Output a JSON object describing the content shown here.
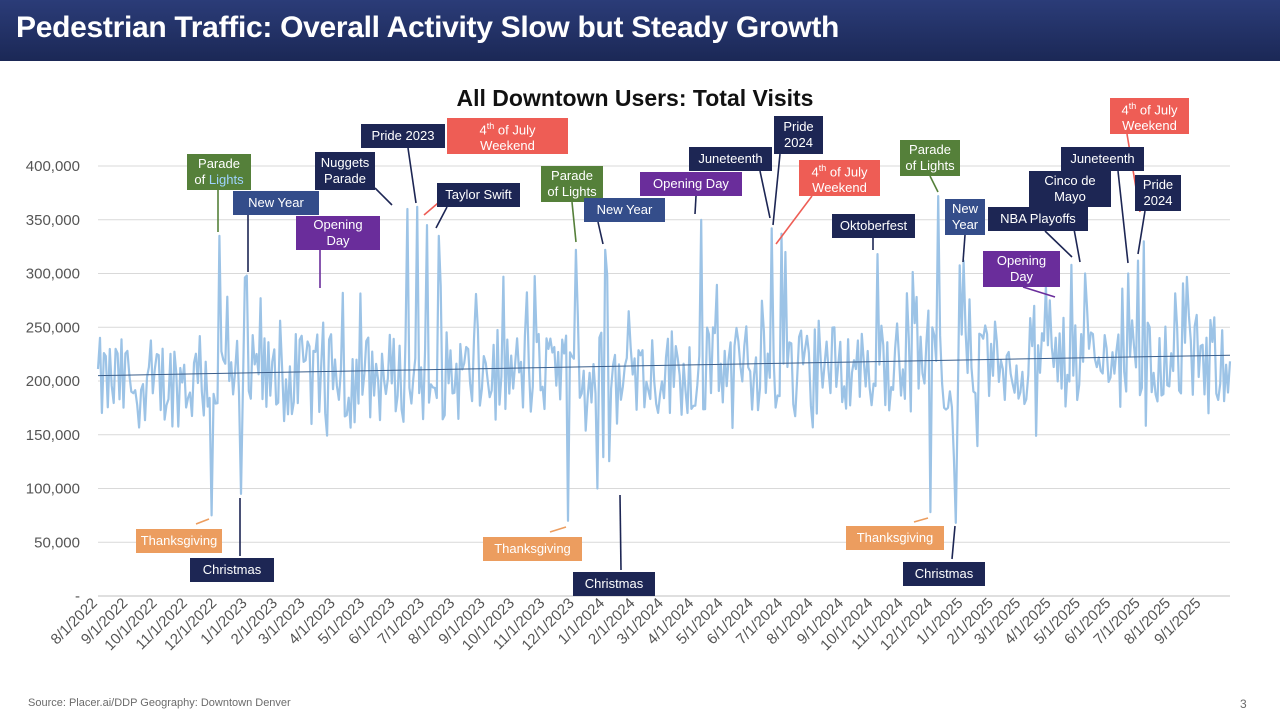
{
  "header": {
    "title": "Pedestrian Traffic: Overall Activity Slow but Steady Growth"
  },
  "footer": {
    "source": "Source: Placer.ai/DDP   Geography: Downtown Denver",
    "page": "3"
  },
  "colors": {
    "line": "#9cc3e6",
    "trend": "#3b5e8a",
    "navy": "#1d2654",
    "blue": "#344d8a",
    "green": "#55803a",
    "purple": "#6a2d9b",
    "red": "#ee5d55",
    "orange": "#ec9d5f"
  },
  "chart_data": {
    "type": "line",
    "title": "All Downtown Users: Total Visits",
    "xlabel": "",
    "ylabel": "",
    "ylim": [
      0,
      400000
    ],
    "y_ticks": [
      "-",
      "50,000",
      "100,000",
      "150,000",
      "200,000",
      "250,000",
      "300,000",
      "350,000",
      "400,000"
    ],
    "x_ticks": [
      "8/1/2022",
      "9/1/2022",
      "10/1/2022",
      "11/1/2022",
      "12/1/2022",
      "1/1/2023",
      "2/1/2023",
      "3/1/2023",
      "4/1/2023",
      "5/1/2023",
      "6/1/2023",
      "7/1/2023",
      "8/1/2023",
      "9/1/2023",
      "10/1/2023",
      "11/1/2023",
      "12/1/2023",
      "1/1/2024",
      "2/1/2024",
      "3/1/2024",
      "4/1/2024",
      "5/1/2024",
      "6/1/2024",
      "7/1/2024",
      "8/1/2024",
      "9/1/2024",
      "10/1/2024",
      "11/1/2024",
      "12/1/2024",
      "1/1/2025",
      "2/1/2025",
      "3/1/2025",
      "4/1/2025",
      "5/1/2025",
      "6/1/2025",
      "7/1/2025",
      "8/1/2025",
      "9/1/2025"
    ],
    "series": [
      {
        "name": "Total Visits",
        "start": "8/1/2022",
        "end": "9/30/2025",
        "baseline_start": 198000,
        "baseline_end": 220000,
        "spikes": [
          {
            "date": "11/25/2022",
            "value": 75000
          },
          {
            "date": "12/3/2022",
            "value": 335000
          },
          {
            "date": "12/25/2022",
            "value": 95000
          },
          {
            "date": "1/1/2023",
            "value": 298000
          },
          {
            "date": "4/8/2023",
            "value": 282000
          },
          {
            "date": "6/13/2023",
            "value": 360000
          },
          {
            "date": "6/24/2023",
            "value": 362000
          },
          {
            "date": "7/4/2023",
            "value": 345000
          },
          {
            "date": "7/15/2023",
            "value": 335000
          },
          {
            "date": "11/24/2023",
            "value": 70000
          },
          {
            "date": "12/2/2023",
            "value": 322000
          },
          {
            "date": "12/25/2023",
            "value": 100000
          },
          {
            "date": "1/1/2024",
            "value": 322000
          },
          {
            "date": "4/8/2024",
            "value": 350000
          },
          {
            "date": "6/19/2024",
            "value": 342000
          },
          {
            "date": "6/29/2024",
            "value": 337000
          },
          {
            "date": "7/4/2024",
            "value": 320000
          },
          {
            "date": "10/5/2024",
            "value": 318000
          },
          {
            "date": "11/29/2024",
            "value": 78000
          },
          {
            "date": "12/7/2024",
            "value": 372000
          },
          {
            "date": "12/25/2024",
            "value": 68000
          },
          {
            "date": "1/1/2025",
            "value": 312000
          },
          {
            "date": "3/31/2025",
            "value": 275000
          },
          {
            "date": "4/22/2025",
            "value": 308000
          },
          {
            "date": "5/5/2025",
            "value": 300000
          },
          {
            "date": "6/19/2025",
            "value": 300000
          },
          {
            "date": "6/28/2025",
            "value": 312000
          },
          {
            "date": "7/4/2025",
            "value": 330000
          }
        ]
      },
      {
        "name": "Linear trend",
        "start_value": 205000,
        "end_value": 224000
      }
    ],
    "annotations": [
      {
        "text": "Parade of Lights",
        "color": "green"
      },
      {
        "text": "New Year",
        "color": "blue"
      },
      {
        "text": "Opening Day",
        "color": "purple"
      },
      {
        "text": "Nuggets Parade",
        "color": "navy"
      },
      {
        "text": "Pride 2023",
        "color": "navy"
      },
      {
        "text": "4th of July Weekend",
        "color": "red"
      },
      {
        "text": "Taylor Swift",
        "color": "navy"
      },
      {
        "text": "Parade of Lights",
        "color": "green"
      },
      {
        "text": "New Year",
        "color": "blue"
      },
      {
        "text": "Opening Day",
        "color": "purple"
      },
      {
        "text": "Juneteenth",
        "color": "navy"
      },
      {
        "text": "Pride 2024",
        "color": "navy"
      },
      {
        "text": "4th of July Weekend",
        "color": "red"
      },
      {
        "text": "Oktoberfest",
        "color": "navy"
      },
      {
        "text": "Parade of Lights",
        "color": "green"
      },
      {
        "text": "New Year",
        "color": "blue"
      },
      {
        "text": "NBA Playoffs",
        "color": "navy"
      },
      {
        "text": "Cinco de Mayo",
        "color": "navy"
      },
      {
        "text": "Opening Day",
        "color": "purple"
      },
      {
        "text": "Juneteenth",
        "color": "navy"
      },
      {
        "text": "4th of July Weekend",
        "color": "red"
      },
      {
        "text": "Pride 2024",
        "color": "navy"
      },
      {
        "text": "Thanksgiving",
        "color": "orange"
      },
      {
        "text": "Christmas",
        "color": "navy"
      },
      {
        "text": "Thanksgiving",
        "color": "orange"
      },
      {
        "text": "Christmas",
        "color": "navy"
      },
      {
        "text": "Thanksgiving",
        "color": "orange"
      },
      {
        "text": "Christmas",
        "color": "navy"
      }
    ]
  },
  "labels": {
    "a1a": "Parade",
    "a1b": "of ",
    "a1c": "Lights",
    "a2": "New Year",
    "a3a": "Opening",
    "a3b": "Day",
    "a4a": "Nuggets",
    "a4b": "Parade",
    "a5": "Pride 2023",
    "a6a": "4",
    "a6b": "th",
    "a6c": " of July",
    "a6d": "Weekend",
    "a7": "Taylor Swift",
    "a8a": "Parade",
    "a8b": "of Lights",
    "a9": "New Year",
    "a10": "Opening Day",
    "a11": "Juneteenth",
    "a12a": "Pride",
    "a12b": "2024",
    "a13a": "4",
    "a13b": "th",
    "a13c": " of July",
    "a13d": "Weekend",
    "a14": "Oktoberfest",
    "a15a": "Parade",
    "a15b": "of Lights",
    "a16a": "New",
    "a16b": "Year",
    "a17": "NBA Playoffs",
    "a18a": "Cinco de",
    "a18b": "Mayo",
    "a19a": "Opening",
    "a19b": "Day",
    "a20": "Juneteenth",
    "a21a": "4",
    "a21b": "th",
    "a21c": " of July",
    "a21d": "Weekend",
    "a22a": "Pride",
    "a22b": "2024",
    "b1": "Thanksgiving",
    "b2": "Christmas",
    "b3": "Thanksgiving",
    "b4": "Christmas",
    "b5": "Thanksgiving",
    "b6": "Christmas"
  }
}
